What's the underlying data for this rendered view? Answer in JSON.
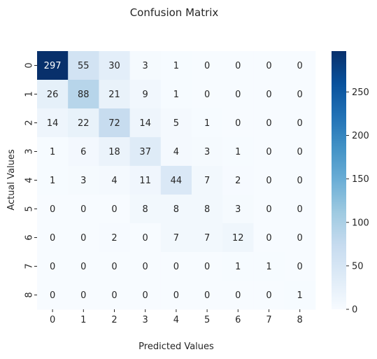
{
  "chart_data": {
    "type": "heatmap",
    "title": "Confusion Matrix",
    "xlabel": "Predicted Values",
    "ylabel": "Actual Values",
    "x_categories": [
      "0",
      "1",
      "2",
      "3",
      "4",
      "5",
      "6",
      "7",
      "8"
    ],
    "y_categories": [
      "0",
      "1",
      "2",
      "3",
      "4",
      "5",
      "6",
      "7",
      "8"
    ],
    "values": [
      [
        297,
        55,
        30,
        3,
        1,
        0,
        0,
        0,
        0
      ],
      [
        26,
        88,
        21,
        9,
        1,
        0,
        0,
        0,
        0
      ],
      [
        14,
        22,
        72,
        14,
        5,
        1,
        0,
        0,
        0
      ],
      [
        1,
        6,
        18,
        37,
        4,
        3,
        1,
        0,
        0
      ],
      [
        1,
        3,
        4,
        11,
        44,
        7,
        2,
        0,
        0
      ],
      [
        0,
        0,
        0,
        8,
        8,
        8,
        3,
        0,
        0
      ],
      [
        0,
        0,
        2,
        0,
        7,
        7,
        12,
        0,
        0
      ],
      [
        0,
        0,
        0,
        0,
        0,
        0,
        1,
        1,
        0
      ],
      [
        0,
        0,
        0,
        0,
        0,
        0,
        0,
        0,
        1
      ]
    ],
    "colormap": "Blues",
    "color_min": "#f7fbff",
    "color_max": "#08306b",
    "vmin": 0,
    "vmax": 297,
    "colorbar_ticks": [
      0,
      50,
      100,
      150,
      200,
      250
    ],
    "grid": false
  }
}
